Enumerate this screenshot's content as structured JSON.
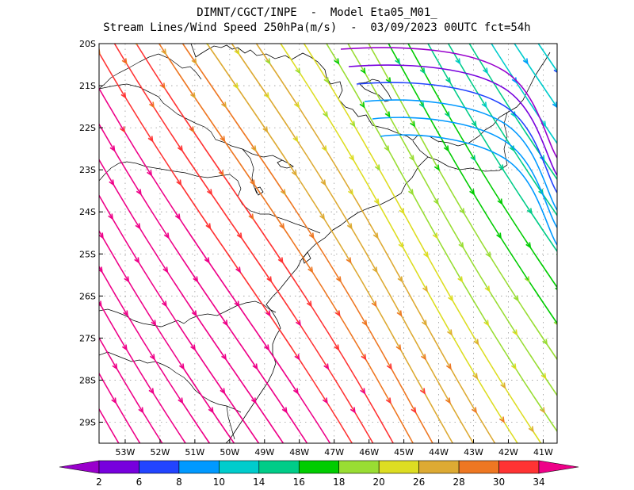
{
  "header": {
    "line1": "DIMNT/CGCT/INPE  -  Model Eta05_M01_",
    "line2": "Stream Lines/Wind Speed 250hPa(m/s)  -  03/09/2023 00UTC fct=54h"
  },
  "map": {
    "lon_range": [
      -53.75,
      -40.6
    ],
    "lat_range": [
      -29.5,
      -20.0
    ],
    "lat_ticks": [
      "20S",
      "21S",
      "22S",
      "23S",
      "24S",
      "25S",
      "26S",
      "27S",
      "28S",
      "29S"
    ],
    "lon_ticks": [
      "53W",
      "52W",
      "51W",
      "50W",
      "49W",
      "48W",
      "47W",
      "46W",
      "45W",
      "44W",
      "43W",
      "42W",
      "41W"
    ]
  },
  "colorbar": {
    "labels": [
      "2",
      "6",
      "8",
      "10",
      "14",
      "16",
      "18",
      "20",
      "26",
      "28",
      "30",
      "34"
    ],
    "colors": [
      "#9900cc",
      "#7700dd",
      "#2244ff",
      "#0099ff",
      "#00cccc",
      "#00cc88",
      "#00cc00",
      "#99dd33",
      "#dddd22",
      "#ddaa33",
      "#ee7722",
      "#ff3333",
      "#ee0088"
    ]
  }
}
